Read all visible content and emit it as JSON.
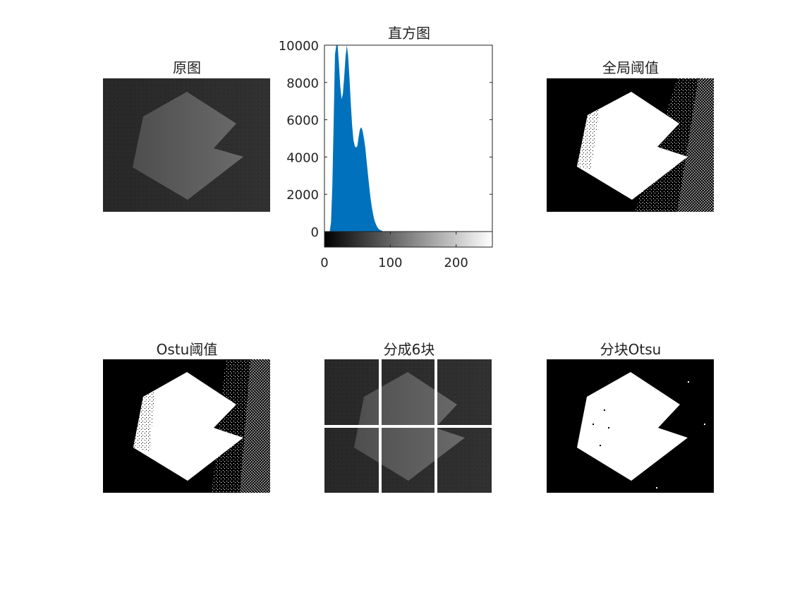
{
  "panels": {
    "original": {
      "title": "原图"
    },
    "histogram": {
      "title": "直方图"
    },
    "global": {
      "title": "全局阈值"
    },
    "otsu": {
      "title": "Ostu阈值"
    },
    "split": {
      "title": "分成6块"
    },
    "block_otsu": {
      "title": "分块Otsu"
    }
  },
  "colors": {
    "bar": "#0072bd",
    "axis": "#222222",
    "image_bg": "#2b2b2b",
    "shape": "#5c5c5c"
  },
  "chart_data": {
    "type": "area",
    "title": "直方图",
    "xlabel": "",
    "ylabel": "",
    "xlim": [
      0,
      255
    ],
    "ylim": [
      0,
      10000
    ],
    "x_ticks": [
      0,
      100,
      200
    ],
    "y_ticks": [
      0,
      2000,
      4000,
      6000,
      8000,
      10000
    ],
    "x_tick_labels": [
      "0",
      "100",
      "200"
    ],
    "y_tick_labels": [
      "0",
      "2000",
      "4000",
      "6000",
      "8000",
      "10000"
    ],
    "grid": false,
    "colorbar": "grayscale",
    "x": [
      8,
      10,
      12,
      14,
      16,
      18,
      20,
      22,
      24,
      26,
      28,
      30,
      32,
      34,
      36,
      38,
      40,
      42,
      44,
      46,
      48,
      50,
      52,
      54,
      56,
      58,
      60,
      62,
      64,
      66,
      68,
      70,
      72,
      74,
      76,
      78,
      80,
      82,
      84,
      86,
      88,
      90,
      92,
      94,
      96,
      98,
      100
    ],
    "values": [
      0,
      500,
      2500,
      6000,
      9500,
      10000,
      10000,
      9000,
      7800,
      7100,
      7400,
      8300,
      9400,
      10000,
      9400,
      8200,
      6900,
      5700,
      4900,
      4600,
      4500,
      4600,
      5100,
      5500,
      5600,
      5400,
      5000,
      4500,
      3800,
      3100,
      2400,
      1800,
      1300,
      900,
      600,
      400,
      250,
      150,
      100,
      60,
      30,
      10,
      0,
      0,
      0,
      0,
      0
    ]
  }
}
